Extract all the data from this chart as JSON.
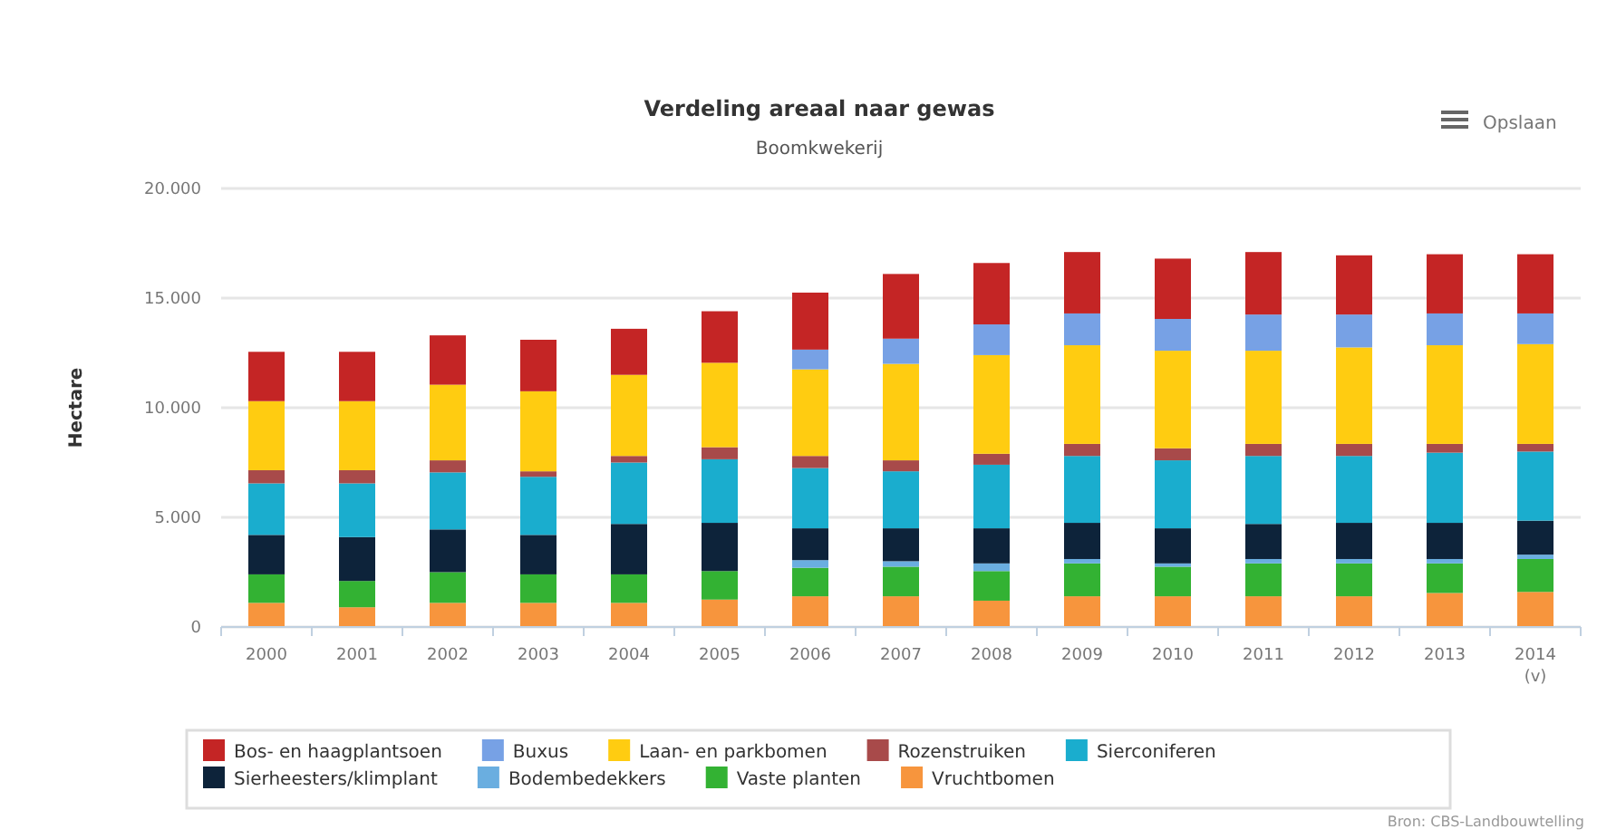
{
  "chart_data": {
    "type": "bar",
    "stacked": true,
    "title": "Verdeling areaal naar gewas",
    "subtitle": "Boomkwekerij",
    "ylabel": "Hectare",
    "categories": [
      "2000",
      "2001",
      "2002",
      "2003",
      "2004",
      "2005",
      "2006",
      "2007",
      "2008",
      "2009",
      "2010",
      "2011",
      "2012",
      "2013",
      "2014 (v)"
    ],
    "series": [
      {
        "name": "Vruchtbomen",
        "color": "#f7953d",
        "values": [
          1100,
          900,
          1100,
          1100,
          1100,
          1250,
          1400,
          1400,
          1200,
          1400,
          1400,
          1400,
          1400,
          1550,
          1600
        ]
      },
      {
        "name": "Vaste planten",
        "color": "#33b233",
        "values": [
          1300,
          1200,
          1400,
          1300,
          1300,
          1300,
          1300,
          1350,
          1350,
          1500,
          1350,
          1500,
          1500,
          1350,
          1500
        ]
      },
      {
        "name": "Bodembedekkers",
        "color": "#6aaee0",
        "values": [
          0,
          0,
          0,
          0,
          0,
          0,
          350,
          250,
          350,
          200,
          150,
          200,
          200,
          200,
          200
        ]
      },
      {
        "name": "Sierheesters/klimplant",
        "color": "#0d233a",
        "values": [
          1800,
          2000,
          1950,
          1800,
          2300,
          2200,
          1450,
          1500,
          1600,
          1650,
          1600,
          1600,
          1650,
          1650,
          1550
        ]
      },
      {
        "name": "Sierconiferen",
        "color": "#1aadce",
        "values": [
          2350,
          2450,
          2600,
          2650,
          2800,
          2900,
          2750,
          2600,
          2900,
          3050,
          3100,
          3100,
          3050,
          3200,
          3150
        ]
      },
      {
        "name": "Rozenstruiken",
        "color": "#a84a4a",
        "values": [
          600,
          600,
          550,
          250,
          300,
          550,
          550,
          500,
          500,
          550,
          550,
          550,
          550,
          400,
          350
        ]
      },
      {
        "name": "Laan- en parkbomen",
        "color": "#ffcc11",
        "values": [
          3150,
          3150,
          3450,
          3650,
          3700,
          3850,
          3950,
          4400,
          4500,
          4500,
          4450,
          4250,
          4400,
          4500,
          4550
        ]
      },
      {
        "name": "Buxus",
        "color": "#77a1e5",
        "values": [
          0,
          0,
          0,
          0,
          0,
          0,
          900,
          1150,
          1400,
          1450,
          1450,
          1650,
          1500,
          1450,
          1400
        ]
      },
      {
        "name": "Bos- en haagplantsoen",
        "color": "#c42525",
        "values": [
          2250,
          2250,
          2250,
          2350,
          2100,
          2350,
          2600,
          2950,
          2800,
          2800,
          2750,
          2850,
          2700,
          2700,
          2700
        ]
      }
    ],
    "ylim": [
      0,
      20000
    ],
    "yticks": [
      {
        "value": 0,
        "label": "0"
      },
      {
        "value": 5000,
        "label": "5.000"
      },
      {
        "value": 10000,
        "label": "10.000"
      },
      {
        "value": 15000,
        "label": "15.000"
      },
      {
        "value": 20000,
        "label": "20.000"
      }
    ],
    "grid": "y",
    "legend": "bottom",
    "annotations": [
      "Opslaan",
      "Bron: CBS-Landbouwtelling"
    ]
  }
}
